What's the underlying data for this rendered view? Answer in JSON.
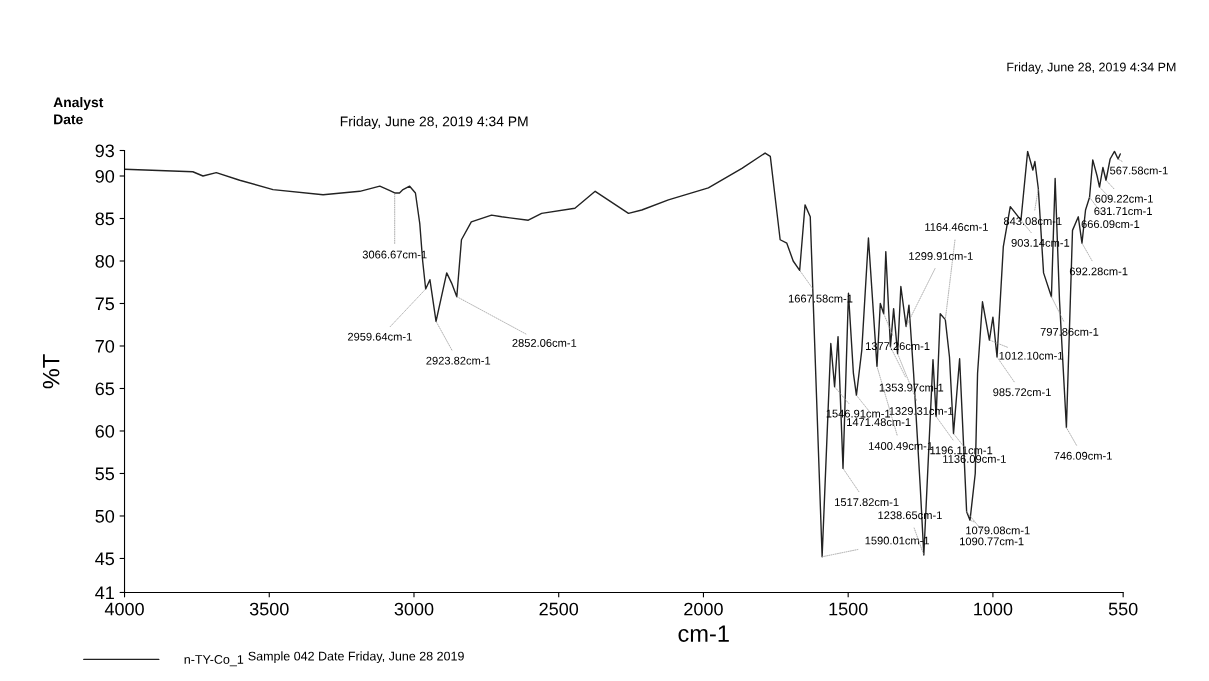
{
  "chart_data": {
    "type": "line",
    "xlabel": "cm-1",
    "ylabel": "%T",
    "xlim": [
      4000,
      550
    ],
    "ylim": [
      41,
      93
    ],
    "xticks": [
      4000,
      3500,
      3000,
      2500,
      2000,
      1500,
      1000,
      550
    ],
    "yticks": [
      41,
      45,
      50,
      55,
      60,
      65,
      70,
      75,
      80,
      85,
      90,
      93
    ],
    "grid": false,
    "legend": "bottom left",
    "marker": "none",
    "line_style": "solid",
    "series": [
      {
        "name": "n-TY-Co_1",
        "color": "#222222",
        "x": [
          4000,
          3764,
          3729,
          3683,
          3602,
          3487,
          3314,
          3187,
          3118,
          3085,
          3066.67,
          3050,
          3038,
          3015,
          2995,
          2980,
          2970,
          2959.64,
          2945,
          2923.82,
          2887,
          2870,
          2852.06,
          2836,
          2802,
          2732,
          2697,
          2605,
          2559,
          2444,
          2374,
          2259,
          2213,
          2121,
          1983,
          1867,
          1787,
          1769,
          1735,
          1712,
          1690,
          1667.58,
          1649,
          1631,
          1590.01,
          1560,
          1546.91,
          1535,
          1517.82,
          1499,
          1482,
          1471.48,
          1453,
          1430,
          1400.49,
          1389,
          1377.26,
          1370,
          1353.97,
          1343,
          1329.31,
          1318,
          1299.91,
          1290,
          1274,
          1251,
          1238.65,
          1207,
          1196.11,
          1182,
          1164.46,
          1150,
          1136.09,
          1115,
          1090.77,
          1079.08,
          1061,
          1053,
          1036,
          1012.1,
          1000,
          985.72,
          964,
          940,
          903.14,
          880,
          862,
          855,
          843.08,
          825,
          797.86,
          785,
          770,
          746.09,
          725,
          705,
          692.28,
          680,
          666.09,
          655,
          640,
          631.71,
          620,
          609.22,
          595,
          580,
          567.58,
          560
        ],
        "values": [
          90.8,
          90.5,
          90.0,
          90.4,
          89.5,
          88.4,
          87.8,
          88.2,
          88.8,
          88.3,
          88.0,
          88.0,
          88.4,
          88.8,
          88.0,
          84.4,
          80.0,
          76.7,
          77.8,
          72.9,
          78.6,
          77.4,
          75.8,
          82.5,
          84.6,
          85.4,
          85.2,
          84.8,
          85.6,
          86.2,
          88.2,
          85.6,
          86.0,
          87.2,
          88.6,
          90.9,
          92.7,
          92.3,
          82.5,
          82.1,
          80.0,
          78.9,
          86.6,
          85.2,
          45.2,
          70.3,
          65.2,
          71.1,
          55.6,
          76.2,
          66.8,
          64.2,
          69.5,
          82.7,
          67.6,
          75.0,
          73.8,
          81.1,
          69.9,
          74.4,
          69.1,
          77.0,
          72.3,
          74.8,
          66.8,
          53.4,
          45.4,
          68.4,
          61.7,
          73.8,
          73.1,
          68.7,
          59.7,
          68.5,
          50.5,
          49.5,
          55.0,
          66.8,
          75.2,
          70.7,
          73.4,
          68.7,
          81.7,
          86.4,
          84.8,
          92.9,
          90.7,
          91.7,
          88.5,
          78.6,
          75.8,
          89.7,
          75.4,
          60.4,
          83.6,
          85.2,
          82.1,
          86.0,
          87.5,
          91.9,
          90.0,
          88.7,
          91.0,
          89.5,
          92.0,
          92.9,
          92.0,
          92.6
        ]
      }
    ],
    "annotations": [
      "Analyst",
      "Date",
      "Friday, June 28, 2019 4:34 PM",
      "Friday, June 28, 2019 4:34 PM",
      "Sample 042 Date Friday, June 28 2019",
      {
        "text": "3066.67cm-1",
        "x": 3066.67,
        "y": 88.0
      },
      {
        "text": "2959.64cm-1",
        "x": 2959.64,
        "y": 76.7
      },
      {
        "text": "2923.82cm-1",
        "x": 2923.82,
        "y": 72.9
      },
      {
        "text": "2852.06cm-1",
        "x": 2852.06,
        "y": 75.8
      },
      {
        "text": "1667.58cm-1",
        "x": 1667.58,
        "y": 78.9
      },
      {
        "text": "1590.01cm-1",
        "x": 1590.01,
        "y": 45.2
      },
      {
        "text": "1546.91cm-1",
        "x": 1546.91,
        "y": 65.2
      },
      {
        "text": "1517.82cm-1",
        "x": 1517.82,
        "y": 55.6
      },
      {
        "text": "1471.48cm-1",
        "x": 1471.48,
        "y": 64.2
      },
      {
        "text": "1400.49cm-1",
        "x": 1400.49,
        "y": 67.6
      },
      {
        "text": "1377.26cm-1",
        "x": 1377.26,
        "y": 73.8
      },
      {
        "text": "1353.97cm-1",
        "x": 1353.97,
        "y": 69.9
      },
      {
        "text": "1329.31cm-1",
        "x": 1329.31,
        "y": 69.1
      },
      {
        "text": "1299.91cm-1",
        "x": 1299.91,
        "y": 72.3
      },
      {
        "text": "1238.65cm-1",
        "x": 1238.65,
        "y": 45.4
      },
      {
        "text": "1196.11cm-1",
        "x": 1196.11,
        "y": 61.7
      },
      {
        "text": "1164.46cm-1",
        "x": 1164.46,
        "y": 73.1
      },
      {
        "text": "1136.09cm-1",
        "x": 1136.09,
        "y": 59.7
      },
      {
        "text": "1090.77cm-1",
        "x": 1090.77,
        "y": 50.5
      },
      {
        "text": "1079.08cm-1",
        "x": 1079.08,
        "y": 49.5
      },
      {
        "text": "1012.10cm-1",
        "x": 1012.1,
        "y": 70.7
      },
      {
        "text": "985.72cm-1",
        "x": 985.72,
        "y": 68.7
      },
      {
        "text": "903.14cm-1",
        "x": 903.14,
        "y": 84.8
      },
      {
        "text": "843.08cm-1",
        "x": 843.08,
        "y": 88.5
      },
      {
        "text": "797.86cm-1",
        "x": 797.86,
        "y": 75.8
      },
      {
        "text": "746.09cm-1",
        "x": 746.09,
        "y": 60.4
      },
      {
        "text": "692.28cm-1",
        "x": 692.28,
        "y": 82.1
      },
      {
        "text": "666.09cm-1",
        "x": 666.09,
        "y": 87.5
      },
      {
        "text": "631.71cm-1",
        "x": 631.71,
        "y": 88.7
      },
      {
        "text": "609.22cm-1",
        "x": 609.22,
        "y": 89.5
      },
      {
        "text": "567.58cm-1",
        "x": 567.58,
        "y": 92.0
      }
    ]
  }
}
